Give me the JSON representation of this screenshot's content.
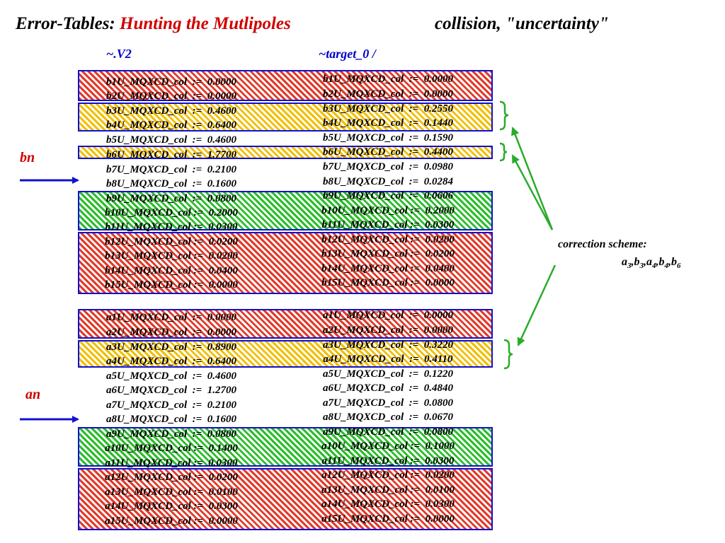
{
  "title": {
    "prefix": "Error-Tables: ",
    "highlight": "Hunting the Mutlipoles",
    "subtitle": "collision, \"uncertainty\""
  },
  "columns": {
    "left": "~.V2",
    "right": "~target_0 /"
  },
  "labels": {
    "bn": "bn",
    "an": "an"
  },
  "correction": {
    "heading": "correction scheme:",
    "terms": [
      {
        "letter": "a",
        "index": "3"
      },
      {
        "letter": "b",
        "index": "3"
      },
      {
        "letter": "a",
        "index": "4"
      },
      {
        "letter": "b",
        "index": "4"
      },
      {
        "letter": "b",
        "index": "6"
      }
    ],
    "separator": ","
  },
  "bn_rows": [
    {
      "left": "b1U_MQXCD_col  :=  0.0000",
      "right": "b1U_MQXCD_col  :=  0.0000"
    },
    {
      "left": "b2U_MQXCD_col  :=  0.0000",
      "right": "b2U_MQXCD_col  :=  0.0000"
    },
    {
      "left": "b3U_MQXCD_col  :=  0.4600",
      "right": "b3U_MQXCD_col  :=  0.2550"
    },
    {
      "left": "b4U_MQXCD_col  :=  0.6400",
      "right": "b4U_MQXCD_col  :=  0.1440"
    },
    {
      "left": "b5U_MQXCD_col  :=  0.4600",
      "right": "b5U_MQXCD_col  :=  0.1590"
    },
    {
      "left": "b6U_MQXCD_col  :=  1.7700",
      "right": "b6U_MQXCD_col  :=  0.4400"
    },
    {
      "left": "b7U_MQXCD_col  :=  0.2100",
      "right": "b7U_MQXCD_col  :=  0.0980"
    },
    {
      "left": "b8U_MQXCD_col  :=  0.1600",
      "right": "b8U_MQXCD_col  :=  0.0284"
    },
    {
      "left": "b9U_MQXCD_col  :=  0.0800",
      "right": "b9U_MQXCD_col  :=  0.0606"
    },
    {
      "left": "b10U_MQXCD_col :=  0.2000",
      "right": "b10U_MQXCD_col :=  0.2000"
    },
    {
      "left": "b11U_MQXCD_col :=  0.0300",
      "right": "b11U_MQXCD_col :=  0.0300"
    },
    {
      "left": "b12U_MQXCD_col :=  0.0200",
      "right": "b12U_MQXCD_col :=  0.0200"
    },
    {
      "left": "b13U_MQXCD_col :=  0.0200",
      "right": "b13U_MQXCD_col :=  0.0200"
    },
    {
      "left": "b14U_MQXCD_col :=  0.0400",
      "right": "b14U_MQXCD_col :=  0.0400"
    },
    {
      "left": "b15U_MQXCD_col :=  0.0000",
      "right": "b15U_MQXCD_col :=  0.0000"
    }
  ],
  "an_rows": [
    {
      "left": "a1U_MQXCD_col  :=  0.0000",
      "right": "a1U_MQXCD_col  :=  0.0000"
    },
    {
      "left": "a2U_MQXCD_col  :=  0.0000",
      "right": "a2U_MQXCD_col  :=  0.0000"
    },
    {
      "left": "a3U_MQXCD_col  :=  0.8900",
      "right": "a3U_MQXCD_col  :=  0.3220"
    },
    {
      "left": "a4U_MQXCD_col  :=  0.6400",
      "right": "a4U_MQXCD_col  :=  0.4110"
    },
    {
      "left": "a5U_MQXCD_col  :=  0.4600",
      "right": "a5U_MQXCD_col  :=  0.1220"
    },
    {
      "left": "a6U_MQXCD_col  :=  1.2700",
      "right": "a6U_MQXCD_col  :=  0.4840"
    },
    {
      "left": "a7U_MQXCD_col  :=  0.2100",
      "right": "a7U_MQXCD_col  :=  0.0800"
    },
    {
      "left": "a8U_MQXCD_col  :=  0.1600",
      "right": "a8U_MQXCD_col  :=  0.0670"
    },
    {
      "left": "a9U_MQXCD_col  :=  0.0800",
      "right": "a9U_MQXCD_col  :=  0.0800"
    },
    {
      "left": "a10U_MQXCD_col :=  0.1400",
      "right": "a10U_MQXCD_col :=  0.1000"
    },
    {
      "left": "a11U_MQXCD_col :=  0.0300",
      "right": "a11U_MQXCD_col :=  0.0300"
    },
    {
      "left": "a12U_MQXCD_col :=  0.0200",
      "right": "a12U_MQXCD_col :=  0.0200"
    },
    {
      "left": "a13U_MQXCD_col :=  0.0100",
      "right": "a13U_MQXCD_col :=  0.0100"
    },
    {
      "left": "a14U_MQXCD_col :=  0.0300",
      "right": "a14U_MQXCD_col :=  0.0300"
    },
    {
      "left": "a15U_MQXCD_col :=  0.0000",
      "right": "a15U_MQXCD_col :=  0.0000"
    }
  ],
  "colors": {
    "hatch_red": "#e23a2a",
    "hatch_yellow": "#f1bf00",
    "hatch_green": "#2bbd2b",
    "frame_blue": "#1010d0",
    "arrow_green": "#2bab2b",
    "arrow_blue": "#1010d0"
  }
}
